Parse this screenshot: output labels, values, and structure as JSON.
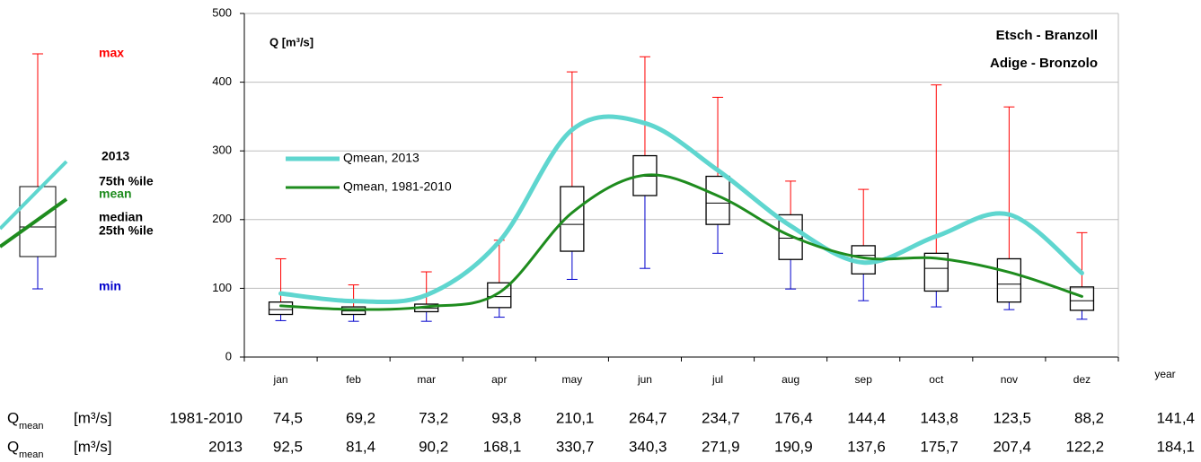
{
  "chart_data": {
    "type": "boxplot",
    "title": "Q [m³/s]",
    "annotations": [
      "Etsch - Branzoll",
      "Adige - Bronzolo"
    ],
    "categories": [
      "jan",
      "feb",
      "mar",
      "apr",
      "may",
      "jun",
      "jul",
      "aug",
      "sep",
      "oct",
      "nov",
      "dez"
    ],
    "year_label": "year",
    "boxes": [
      {
        "min": 53,
        "q1": 62,
        "median": 69,
        "q3": 80,
        "max": 143
      },
      {
        "min": 52,
        "q1": 62,
        "median": 67,
        "q3": 73,
        "max": 105
      },
      {
        "min": 52,
        "q1": 66,
        "median": 71,
        "q3": 77,
        "max": 124
      },
      {
        "min": 58,
        "q1": 72,
        "median": 88,
        "q3": 108,
        "max": 170
      },
      {
        "min": 113,
        "q1": 154,
        "median": 193,
        "q3": 248,
        "max": 415
      },
      {
        "min": 129,
        "q1": 235,
        "median": 263,
        "q3": 293,
        "max": 437
      },
      {
        "min": 151,
        "q1": 193,
        "median": 224,
        "q3": 263,
        "max": 378
      },
      {
        "min": 99,
        "q1": 142,
        "median": 173,
        "q3": 207,
        "max": 256
      },
      {
        "min": 82,
        "q1": 121,
        "median": 148,
        "q3": 162,
        "max": 244
      },
      {
        "min": 73,
        "q1": 96,
        "median": 129,
        "q3": 151,
        "max": 396
      },
      {
        "min": 69,
        "q1": 80,
        "median": 106,
        "q3": 143,
        "max": 364
      },
      {
        "min": 55,
        "q1": 68,
        "median": 82,
        "q3": 102,
        "max": 181
      }
    ],
    "box_color": "#000000",
    "whisker_colors": {
      "upper": "#ff0000",
      "lower": "#0000cc"
    },
    "series": [
      {
        "name": "Qmean, 2013",
        "color": "#5fd6cf",
        "width": 5,
        "values": [
          92.5,
          81.4,
          90.2,
          168.1,
          330.7,
          340.3,
          271.9,
          190.9,
          137.6,
          175.7,
          207.4,
          122.2
        ]
      },
      {
        "name": "Qmean, 1981-2010",
        "color": "#1e8c1e",
        "width": 3,
        "values": [
          74.5,
          69.2,
          73.2,
          93.8,
          210.1,
          264.7,
          234.7,
          176.4,
          144.4,
          143.8,
          123.5,
          88.2
        ]
      }
    ],
    "ylim": [
      0,
      500
    ],
    "yticks": [
      0,
      100,
      200,
      300,
      400,
      500
    ],
    "grid": true,
    "box_legend": {
      "max": "max",
      "year": "2013",
      "q3": "75th %ile",
      "mean": "mean",
      "median": "median",
      "q1": "25th %ile",
      "min": "min"
    }
  },
  "table": {
    "rows": [
      {
        "symbol": "Q",
        "subscript": "mean",
        "unit": "[m³/s]",
        "period": "1981-2010",
        "cells": [
          "74,5",
          "69,2",
          "73,2",
          "93,8",
          "210,1",
          "264,7",
          "234,7",
          "176,4",
          "144,4",
          "143,8",
          "123,5",
          "88,2",
          "141,4"
        ]
      },
      {
        "symbol": "Q",
        "subscript": "mean",
        "unit": "[m³/s]",
        "period": "2013",
        "cells": [
          "92,5",
          "81,4",
          "90,2",
          "168,1",
          "330,7",
          "340,3",
          "271,9",
          "190,9",
          "137,6",
          "175,7",
          "207,4",
          "122,2",
          "184,1"
        ]
      }
    ]
  }
}
